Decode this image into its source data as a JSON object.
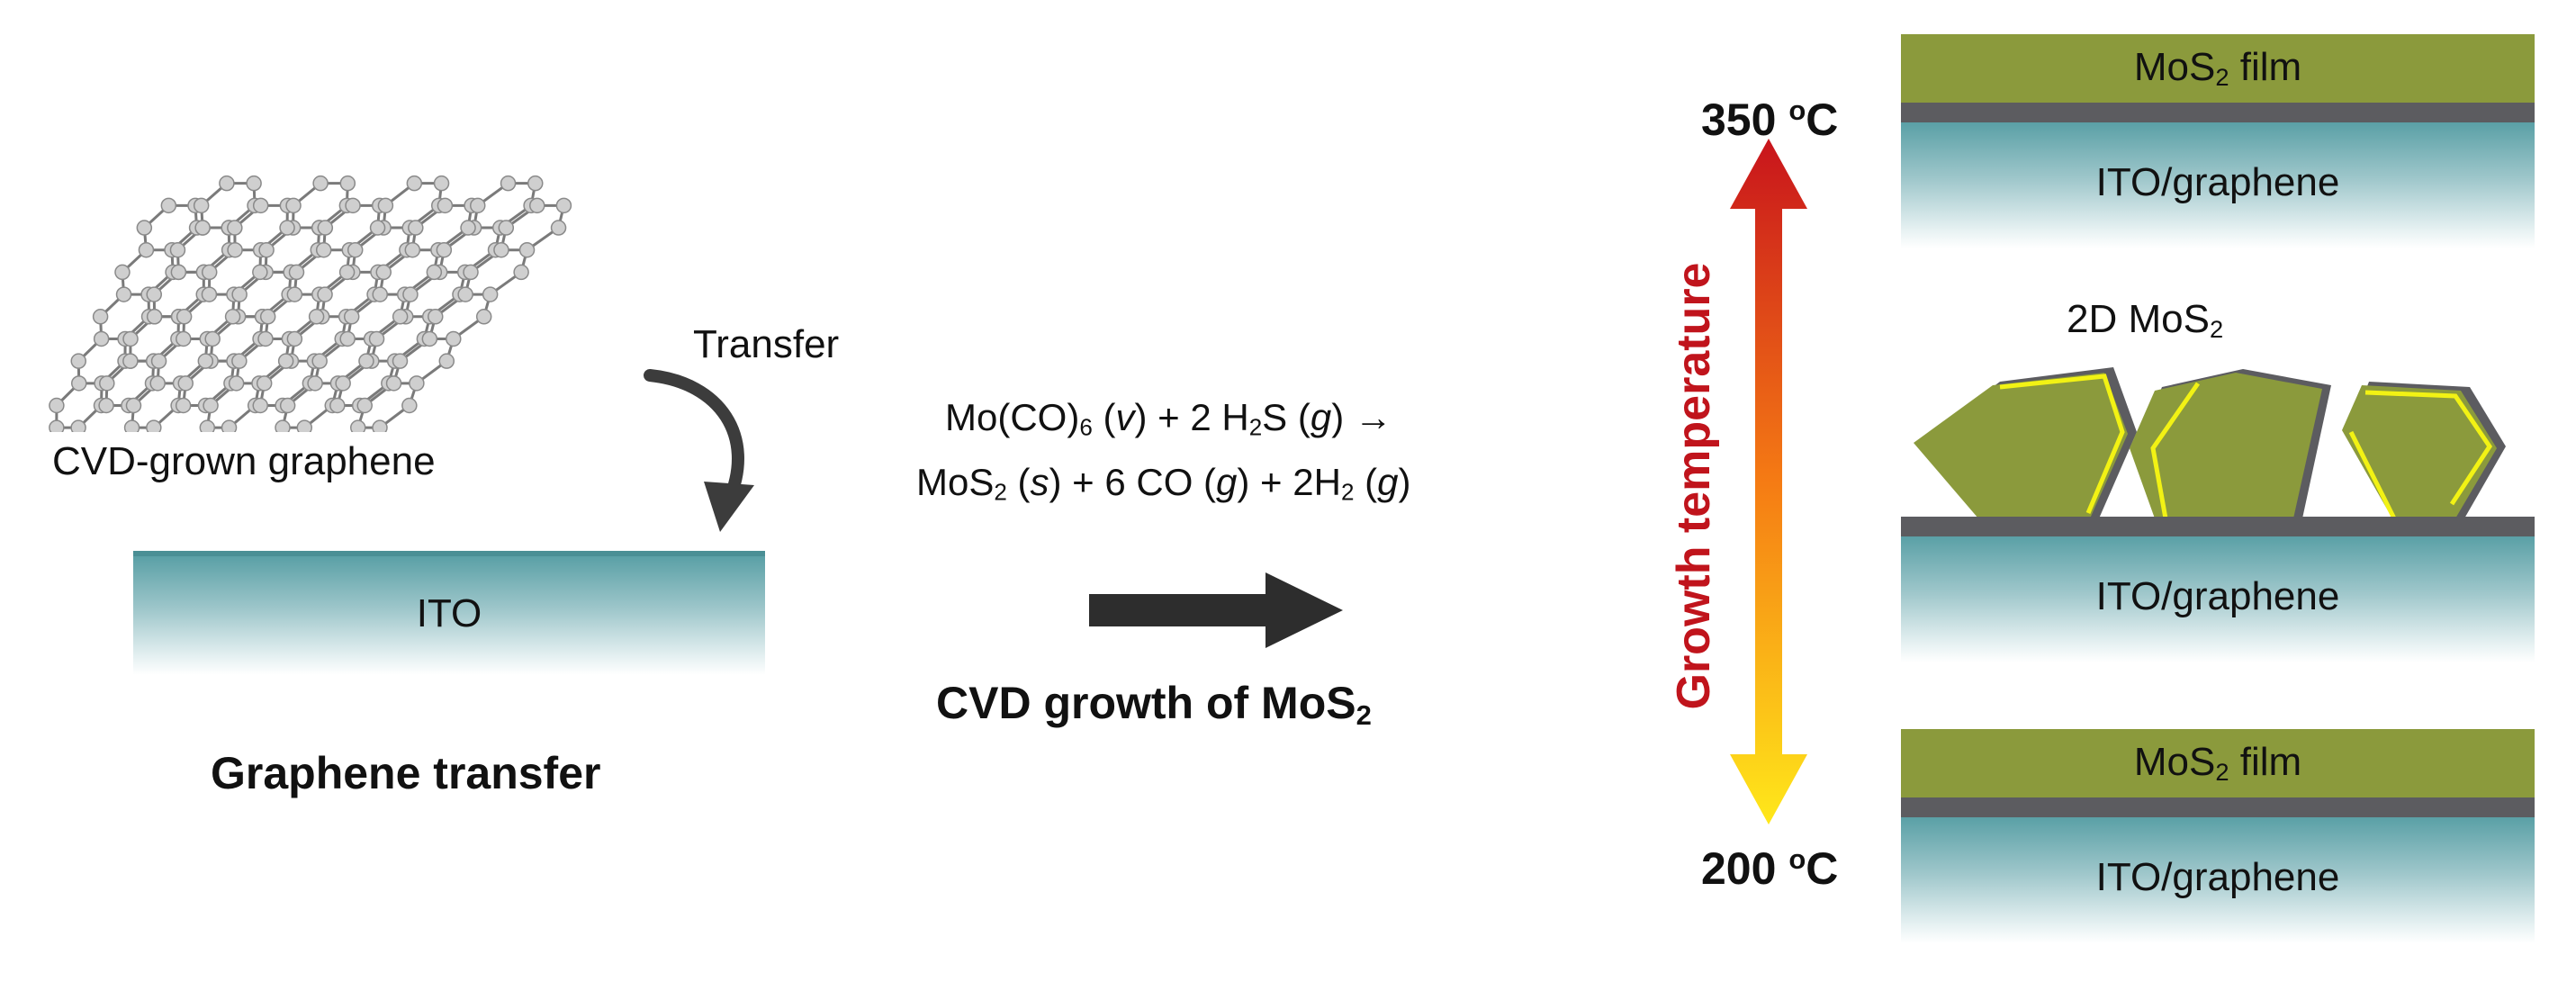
{
  "left": {
    "graphene_label": "CVD-grown graphene",
    "transfer_label": "Transfer",
    "substrate_label": "ITO",
    "caption": "Graphene transfer"
  },
  "middle": {
    "equation_line1": {
      "a": "Mo(CO)",
      "a_sub": "6",
      "b": " (",
      "b_it": "v",
      "c": ") + 2 H",
      "c_sub": "2",
      "d": "S (",
      "d_it": "g",
      "e": ") →"
    },
    "equation_line2": {
      "a": "MoS",
      "a_sub": "2",
      "b": " (",
      "b_it": "s",
      "c": ") + 6 CO (",
      "c_it": "g",
      "d": ") + 2H",
      "d_sub": "2",
      "e": " (",
      "e_it": "g",
      "f": ")"
    },
    "caption": "CVD growth of MoS",
    "caption_sub": "2"
  },
  "temperature": {
    "high": "350 ",
    "low": "200 ",
    "unit_sup": "o",
    "unit": "C",
    "axis_label": "Growth temperature"
  },
  "right": {
    "top": {
      "film_label": "MoS",
      "film_sub": "2",
      "film_suffix": " film",
      "substrate": "ITO/graphene"
    },
    "middle": {
      "flake_label": "2D MoS",
      "flake_sub": "2",
      "substrate": "ITO/graphene"
    },
    "bottom": {
      "film_label": "MoS",
      "film_sub": "2",
      "film_suffix": " film",
      "substrate": "ITO/graphene"
    }
  },
  "colors": {
    "mos2": "#8b9a3c",
    "interlayer": "#5c5c60",
    "edge_highlight": "#f2f214",
    "arrow_hot": "#c8141c",
    "arrow_cold": "#ffe81a",
    "axis_text": "#c0141c"
  }
}
